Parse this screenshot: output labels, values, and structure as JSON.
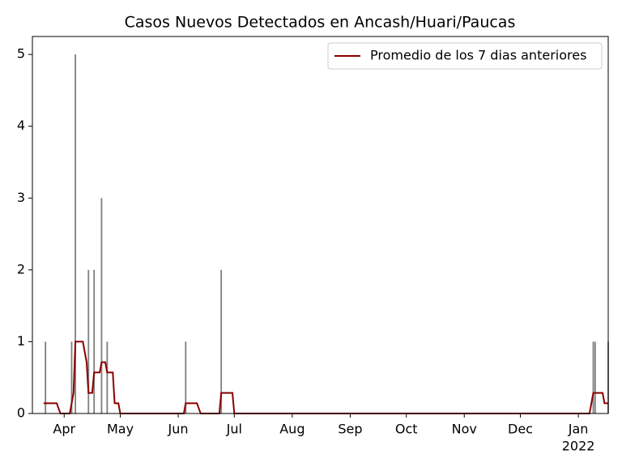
{
  "chart_data": {
    "type": "bar",
    "title": "Casos Nuevos Detectados en Ancash/Huari/Paucas",
    "bars": {
      "color": "#808080",
      "x": [
        "2021-03-22",
        "2021-04-05",
        "2021-04-07",
        "2021-04-14",
        "2021-04-17",
        "2021-04-21",
        "2021-04-24",
        "2021-06-05",
        "2021-06-24",
        "2022-01-09",
        "2022-01-10",
        "2022-01-17"
      ],
      "values": [
        1,
        1,
        5,
        2,
        2,
        3,
        1,
        1,
        2,
        1,
        1,
        1
      ]
    },
    "series": [
      {
        "name": "Promedio de los 7 dias anteriores",
        "color": "#8b0000",
        "x": [
          "2021-03-21",
          "2021-03-28",
          "2021-03-30",
          "2021-04-04",
          "2021-04-06",
          "2021-04-07",
          "2021-04-11",
          "2021-04-13",
          "2021-04-14",
          "2021-04-16",
          "2021-04-17",
          "2021-04-20",
          "2021-04-21",
          "2021-04-23",
          "2021-04-24",
          "2021-04-27",
          "2021-04-28",
          "2021-04-30",
          "2021-05-01",
          "2021-06-04",
          "2021-06-05",
          "2021-06-11",
          "2021-06-13",
          "2021-06-23",
          "2021-06-24",
          "2021-06-30",
          "2021-07-01",
          "2022-01-07",
          "2022-01-09",
          "2022-01-14",
          "2022-01-15",
          "2022-01-17"
        ],
        "values": [
          0.143,
          0.143,
          0,
          0,
          0.286,
          1,
          1,
          0.714,
          0.286,
          0.286,
          0.571,
          0.571,
          0.714,
          0.714,
          0.571,
          0.571,
          0.143,
          0.143,
          0,
          0,
          0.143,
          0.143,
          0,
          0,
          0.286,
          0.286,
          0,
          0,
          0.286,
          0.286,
          0.143,
          0.143
        ]
      }
    ],
    "xlim": [
      "2021-03-15",
      "2022-01-17"
    ],
    "xticks": [
      {
        "value": "2021-04-01",
        "label": "Apr"
      },
      {
        "value": "2021-05-01",
        "label": "May"
      },
      {
        "value": "2021-06-01",
        "label": "Jun"
      },
      {
        "value": "2021-07-01",
        "label": "Jul"
      },
      {
        "value": "2021-08-01",
        "label": "Aug"
      },
      {
        "value": "2021-09-01",
        "label": "Sep"
      },
      {
        "value": "2021-10-01",
        "label": "Oct"
      },
      {
        "value": "2021-11-01",
        "label": "Nov"
      },
      {
        "value": "2021-12-01",
        "label": "Dec"
      },
      {
        "value": "2022-01-01",
        "label": "Jan",
        "sublabel": "2022"
      }
    ],
    "ylim": [
      0,
      5.25
    ],
    "yticks": [
      0,
      1,
      2,
      3,
      4,
      5
    ],
    "legend": "upper right"
  }
}
